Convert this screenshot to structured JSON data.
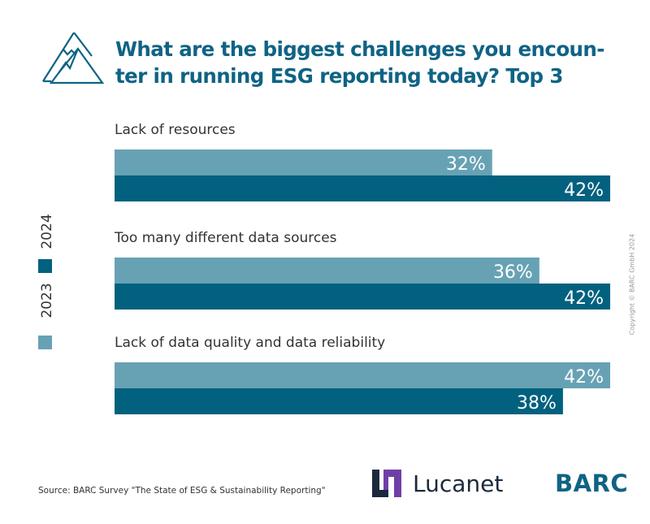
{
  "header": {
    "title": "What are the biggest challenges you encoun-ter in running ESG reporting today? Top 3",
    "title_lines": [
      "What are the biggest challenges you encoun-",
      "ter in running ESG reporting today? Top 3"
    ],
    "icon": "mountain-icon"
  },
  "legend": {
    "items": [
      {
        "label": "2024",
        "color": "#02617f"
      },
      {
        "label": "2023",
        "color": "#67a2b4"
      }
    ]
  },
  "copyright": "Copyright © BARC GmbH 2024",
  "footer": {
    "source": "Source: BARC Survey \"The State of ESG & Sustainability Reporting\"",
    "lucanet_label": "Lucanet",
    "barc_label": "BARC"
  },
  "colors": {
    "accent": "#0f6384",
    "series_2023": "#67a2b4",
    "series_2024": "#02617f",
    "lucanet_dark": "#1a2a3c",
    "lucanet_purple": "#6f3fa8"
  },
  "chart_data": {
    "type": "bar",
    "orientation": "horizontal",
    "title": "What are the biggest challenges you encounter in running ESG reporting today? Top 3",
    "xlabel": "",
    "ylabel": "",
    "xlim": [
      0,
      42
    ],
    "grid": false,
    "legend_position": "left",
    "unit": "%",
    "categories": [
      "Lack of resources",
      "Too many different data sources",
      "Lack of data quality and data reliability"
    ],
    "series": [
      {
        "name": "2023",
        "color": "#67a2b4",
        "values": [
          32,
          36,
          42
        ],
        "labels": [
          "32%",
          "36%",
          "42%"
        ]
      },
      {
        "name": "2024",
        "color": "#02617f",
        "values": [
          42,
          42,
          38
        ],
        "labels": [
          "42%",
          "42%",
          "38%"
        ]
      }
    ]
  }
}
